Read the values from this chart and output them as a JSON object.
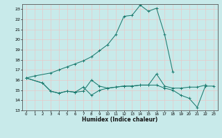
{
  "xlabel": "Humidex (Indice chaleur)",
  "background_color": "#c8eaea",
  "grid_color": "#e8c8c8",
  "line_color": "#1a7a6e",
  "ylim": [
    13,
    23.5
  ],
  "xlim": [
    -0.5,
    23.5
  ],
  "yticks": [
    13,
    14,
    15,
    16,
    17,
    18,
    19,
    20,
    21,
    22,
    23
  ],
  "xticks": [
    0,
    1,
    2,
    3,
    4,
    5,
    6,
    7,
    8,
    9,
    10,
    11,
    12,
    13,
    14,
    15,
    16,
    17,
    18,
    19,
    20,
    21,
    22,
    23
  ],
  "main_x": [
    0,
    1,
    3,
    4,
    5,
    6,
    7,
    8,
    9,
    10,
    11,
    12,
    13,
    14,
    15,
    16,
    17,
    18
  ],
  "main_y": [
    16.2,
    16.4,
    16.7,
    17.0,
    17.3,
    17.6,
    17.9,
    18.3,
    18.9,
    19.5,
    20.5,
    22.3,
    22.4,
    23.4,
    22.8,
    23.1,
    20.5,
    16.8
  ],
  "mid1_x": [
    0,
    2,
    3,
    4,
    5,
    6,
    7,
    8,
    9,
    10,
    11,
    12,
    13,
    14,
    15,
    16,
    17,
    18,
    19,
    20,
    21,
    22
  ],
  "mid1_y": [
    16.2,
    15.7,
    14.9,
    14.7,
    14.9,
    14.8,
    14.9,
    16.0,
    15.4,
    15.2,
    15.3,
    15.4,
    15.4,
    15.5,
    15.5,
    16.6,
    15.4,
    15.2,
    15.2,
    15.3,
    15.3,
    15.5
  ],
  "mid2_x": [
    0,
    2,
    3,
    4,
    5,
    6,
    7,
    8,
    9,
    10,
    11,
    12,
    13,
    14,
    15,
    16,
    17,
    18,
    19,
    20,
    21,
    22,
    23
  ],
  "mid2_y": [
    16.2,
    15.7,
    14.9,
    14.7,
    14.9,
    14.8,
    15.3,
    14.5,
    15.0,
    15.2,
    15.3,
    15.4,
    15.4,
    15.5,
    15.5,
    15.5,
    15.2,
    15.0,
    14.5,
    14.2,
    13.3,
    15.4,
    15.4
  ]
}
